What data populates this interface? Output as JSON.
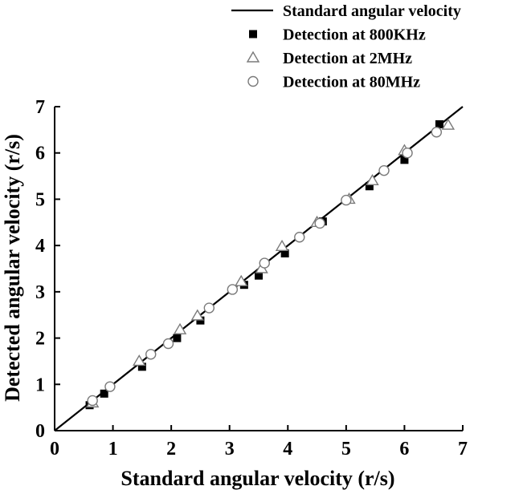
{
  "chart_data": {
    "type": "scatter",
    "xlabel": "Standard angular velocity (r/s)",
    "ylabel": "Detected angular velocity (r/s)",
    "xlim": [
      0,
      7
    ],
    "ylim": [
      0,
      7
    ],
    "xticks": [
      "0",
      "1",
      "2",
      "3",
      "4",
      "5",
      "6",
      "7"
    ],
    "yticks": [
      "0",
      "1",
      "2",
      "3",
      "4",
      "5",
      "6",
      "7"
    ],
    "grid": false,
    "legend_position": "top-right",
    "series": [
      {
        "name": "Standard angular velocity",
        "type": "line",
        "color": "#000000",
        "points": [
          [
            0,
            0
          ],
          [
            7,
            7
          ]
        ]
      },
      {
        "name": "Detection at 800KHz",
        "type": "scatter",
        "marker": "square-filled",
        "color": "#000000",
        "points": [
          [
            0.6,
            0.55
          ],
          [
            0.85,
            0.8
          ],
          [
            1.5,
            1.38
          ],
          [
            2.1,
            2.0
          ],
          [
            2.5,
            2.38
          ],
          [
            3.25,
            3.15
          ],
          [
            3.5,
            3.35
          ],
          [
            3.95,
            3.83
          ],
          [
            4.6,
            4.52
          ],
          [
            5.4,
            5.28
          ],
          [
            6.0,
            5.85
          ],
          [
            6.6,
            6.62
          ]
        ]
      },
      {
        "name": "Detection at 2MHz",
        "type": "scatter",
        "marker": "triangle-open",
        "color": "#7a7a7a",
        "points": [
          [
            0.65,
            0.6
          ],
          [
            1.45,
            1.5
          ],
          [
            2.15,
            2.18
          ],
          [
            2.45,
            2.48
          ],
          [
            3.2,
            3.22
          ],
          [
            3.55,
            3.5
          ],
          [
            3.9,
            3.98
          ],
          [
            4.5,
            4.5
          ],
          [
            5.05,
            5.0
          ],
          [
            5.45,
            5.4
          ],
          [
            6.0,
            6.05
          ],
          [
            6.75,
            6.6
          ]
        ]
      },
      {
        "name": "Detection at 80MHz",
        "type": "scatter",
        "marker": "circle-open",
        "color": "#7a7a7a",
        "points": [
          [
            0.65,
            0.65
          ],
          [
            0.95,
            0.95
          ],
          [
            1.65,
            1.65
          ],
          [
            1.95,
            1.88
          ],
          [
            2.65,
            2.65
          ],
          [
            3.05,
            3.05
          ],
          [
            3.6,
            3.62
          ],
          [
            4.2,
            4.18
          ],
          [
            4.55,
            4.48
          ],
          [
            5.0,
            4.98
          ],
          [
            5.65,
            5.62
          ],
          [
            6.05,
            6.0
          ],
          [
            6.55,
            6.45
          ]
        ]
      }
    ]
  }
}
